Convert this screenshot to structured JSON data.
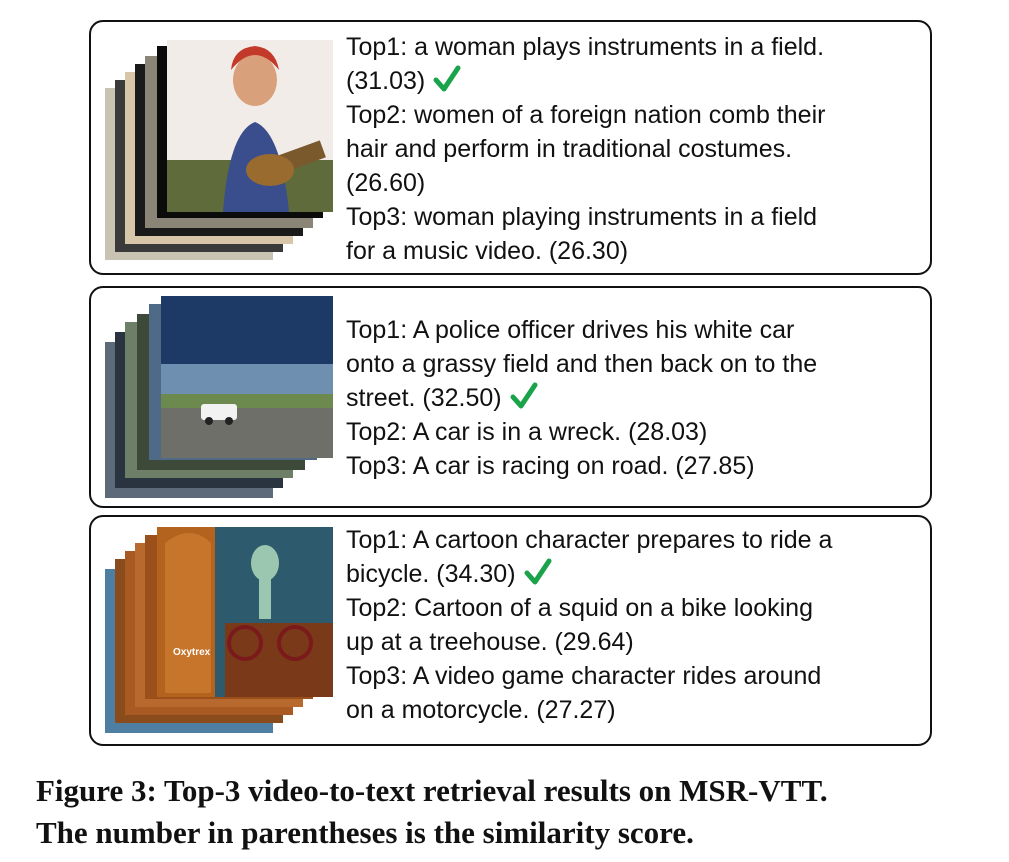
{
  "figure": {
    "panels": [
      {
        "lines": [
          "Top1: a woman plays instruments in a field.",
          "(31.03)",
          "Top2: women of a foreign nation comb their",
          "hair and perform in traditional costumes.",
          "(26.60)",
          "Top3: woman playing instruments in a field",
          "for a music video. (26.30)"
        ],
        "thumbnail_text": ""
      },
      {
        "lines": [
          "Top1: A police officer drives his white car",
          "onto a grassy field and then back on to the",
          "street. (32.50)",
          "Top2: A car is in a wreck. (28.03)",
          "Top3: A car is racing on road. (27.85)"
        ],
        "thumbnail_text": ""
      },
      {
        "lines": [
          "Top1: A cartoon character prepares to ride a",
          "bicycle. (34.30)",
          "Top2: Cartoon of a squid on a bike looking",
          "up at a treehouse. (29.64)",
          "Top3: A video game character rides around",
          "on a motorcycle. (27.27)"
        ],
        "thumbnail_text": "Oxytrex"
      }
    ],
    "caption_line1": "Figure 3: Top-3 video-to-text retrieval results on MSR-VTT.",
    "caption_line2": "The number in parentheses is the similarity score.",
    "colors": {
      "check": "#1aa34a",
      "border": "#111111"
    },
    "icons": [
      "checkmark-icon"
    ]
  }
}
